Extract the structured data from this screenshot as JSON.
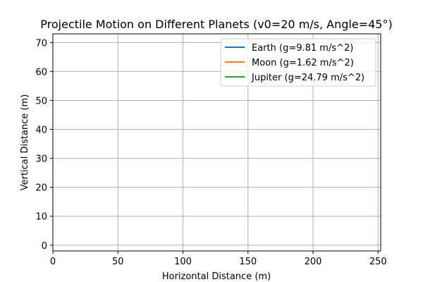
{
  "chart_data": {
    "type": "line",
    "title": "Projectile Motion on Different Planets (v0=20 m/s, Angle=45°)",
    "xlabel": "Horizontal Distance (m)",
    "ylabel": "Vertical Distance (m)",
    "xlim": [
      0,
      252
    ],
    "ylim": [
      -2,
      73
    ],
    "xticks": [
      0,
      50,
      100,
      150,
      200,
      250
    ],
    "yticks": [
      0,
      10,
      20,
      30,
      40,
      50,
      60,
      70
    ],
    "grid": true,
    "legend_position": "top-right",
    "series": [
      {
        "name": "Earth (g=9.81 m/s^2)",
        "color": "#1f77b4",
        "x": [],
        "y": []
      },
      {
        "name": "Moon (g=1.62 m/s^2)",
        "color": "#ff7f0e",
        "x": [],
        "y": []
      },
      {
        "name": "Jupiter (g=24.79 m/s^2)",
        "color": "#2ca02c",
        "x": [],
        "y": []
      }
    ]
  }
}
